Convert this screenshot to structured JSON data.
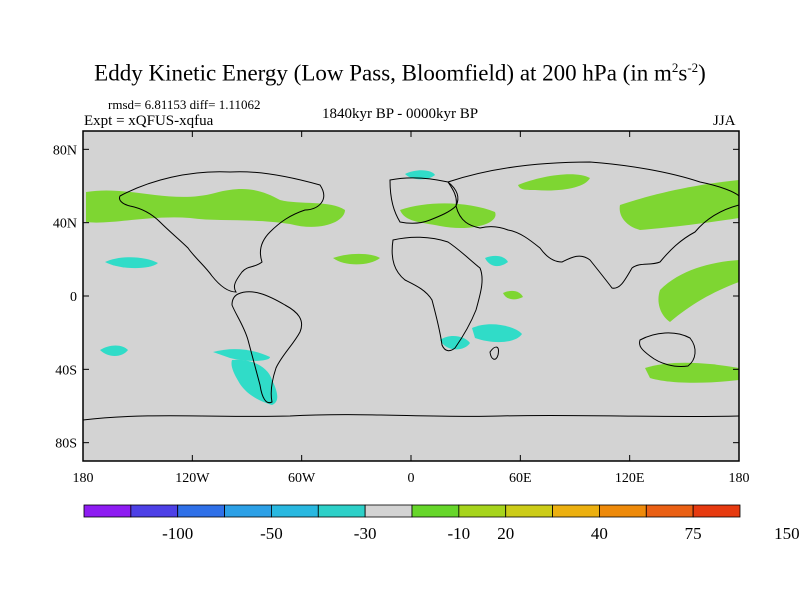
{
  "title": {
    "text": "Eddy Kinetic Energy (Low Pass, Bloomfield) at 200 hPa (in m",
    "sup1": "2",
    "mid": "s",
    "sup2": "-2",
    "end": ")"
  },
  "stats": "rmsd= 6.81153 diff= 1.11062",
  "experiment": "Expt = xQFUS-xqfua",
  "period": "1840kyr BP - 0000kyr BP",
  "season": "JJA",
  "map": {
    "ocean_color": "#d3d3d3",
    "lat_labels": [
      "80N",
      "40N",
      "0",
      "40S",
      "80S"
    ],
    "lat_values": [
      80,
      40,
      0,
      -40,
      -80
    ],
    "lon_labels": [
      "180",
      "120W",
      "60W",
      "0",
      "60E",
      "120E",
      "180"
    ],
    "lon_values": [
      -180,
      -120,
      -60,
      0,
      60,
      120,
      180
    ],
    "lat_range": [
      -90,
      90
    ],
    "lon_range": [
      -180,
      180
    ]
  },
  "colorbar": {
    "colors": [
      "#8e1cf2",
      "#4d40e6",
      "#2f70e8",
      "#2ca0e6",
      "#29b8e0",
      "#2dd0c8",
      "#d3d3d3",
      "#66d62a",
      "#a6d41c",
      "#cccc18",
      "#ecb010",
      "#ee8a0a",
      "#ea6014",
      "#e63a10"
    ],
    "labels": [
      "-100",
      "-50",
      "-30",
      "-10",
      "20",
      "40",
      "75",
      "150"
    ]
  },
  "anomaly_colors": {
    "positive": "#7ed632",
    "negative": "#30dcc8"
  }
}
